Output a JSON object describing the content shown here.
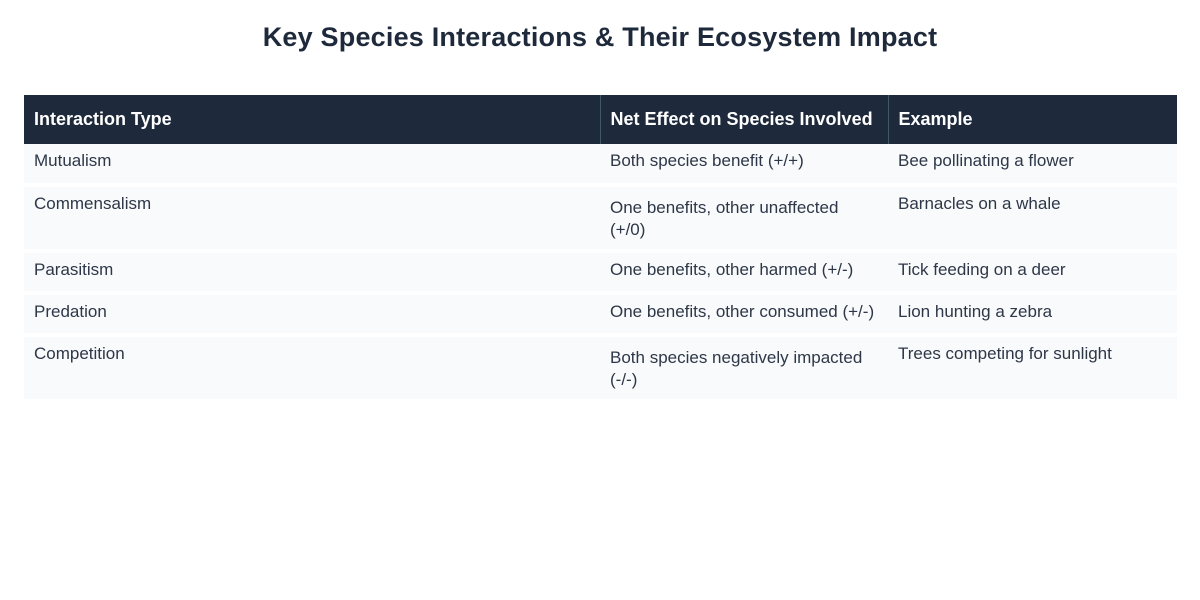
{
  "title": "Key Species Interactions & Their Ecosystem Impact",
  "table": {
    "headers": [
      "Interaction Type",
      "Net Effect on Species Involved",
      "Example"
    ],
    "rows": [
      [
        "Mutualism",
        "Both species benefit (+/+)",
        "Bee pollinating a flower"
      ],
      [
        "Commensalism",
        "One benefits, other unaffected (+/0)",
        "Barnacles on a whale"
      ],
      [
        "Parasitism",
        "One benefits, other harmed (+/-)",
        "Tick feeding on a deer"
      ],
      [
        "Predation",
        "One benefits, other consumed (+/-)",
        "Lion hunting a zebra"
      ],
      [
        "Competition",
        "Both species negatively impacted (-/-)",
        "Trees competing for sunlight"
      ]
    ]
  },
  "colors": {
    "header_bg": "#1e2a3b",
    "header_text": "#ffffff",
    "row_bg": "#f9fafb",
    "title_text": "#1e2a3b"
  }
}
